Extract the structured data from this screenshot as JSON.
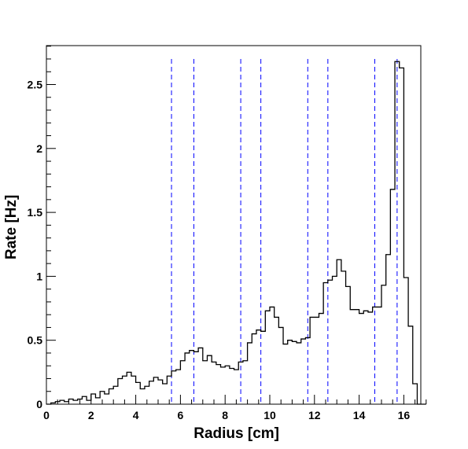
{
  "chart_data": {
    "type": "histogram",
    "title": "",
    "xlabel": "Radius [cm]",
    "ylabel": "Rate [Hz]",
    "xlim": [
      0,
      17
    ],
    "ylim": [
      0,
      2.8
    ],
    "grid": false,
    "legend": "none",
    "bin_width": 0.2,
    "x_ticks": [
      0,
      2,
      4,
      6,
      8,
      10,
      12,
      14,
      16
    ],
    "y_ticks": [
      0,
      0.5,
      1,
      1.5,
      2,
      2.5
    ],
    "x_tick_labels": [
      "0",
      "2",
      "4",
      "6",
      "8",
      "10",
      "12",
      "14",
      "16"
    ],
    "y_tick_labels": [
      "0",
      "0.5",
      "1",
      "1.5",
      "2",
      "2.5"
    ],
    "values": [
      0.0,
      0.01,
      0.02,
      0.03,
      0.02,
      0.04,
      0.03,
      0.04,
      0.06,
      0.03,
      0.08,
      0.05,
      0.1,
      0.08,
      0.12,
      0.14,
      0.2,
      0.22,
      0.25,
      0.22,
      0.17,
      0.12,
      0.14,
      0.18,
      0.21,
      0.19,
      0.16,
      0.22,
      0.26,
      0.27,
      0.34,
      0.4,
      0.42,
      0.41,
      0.44,
      0.34,
      0.38,
      0.33,
      0.31,
      0.29,
      0.3,
      0.28,
      0.27,
      0.33,
      0.34,
      0.48,
      0.55,
      0.58,
      0.57,
      0.73,
      0.76,
      0.68,
      0.6,
      0.47,
      0.5,
      0.49,
      0.48,
      0.51,
      0.52,
      0.68,
      0.68,
      0.71,
      0.95,
      0.97,
      1.0,
      1.13,
      1.04,
      0.92,
      0.74,
      0.74,
      0.71,
      0.73,
      0.72,
      0.76,
      0.76,
      0.93,
      1.17,
      1.68,
      2.68,
      2.63,
      0.99,
      0.61,
      0.16,
      0.0,
      0.0
    ],
    "series": [
      {
        "type": "dashed-vline",
        "color": "#0000ff",
        "x": [
          5.6,
          6.6,
          8.7,
          9.6,
          11.7,
          12.6,
          14.7,
          15.7
        ]
      }
    ],
    "colors": {
      "line": "#000000",
      "vline": "#0000ff",
      "background": "#ffffff"
    }
  }
}
